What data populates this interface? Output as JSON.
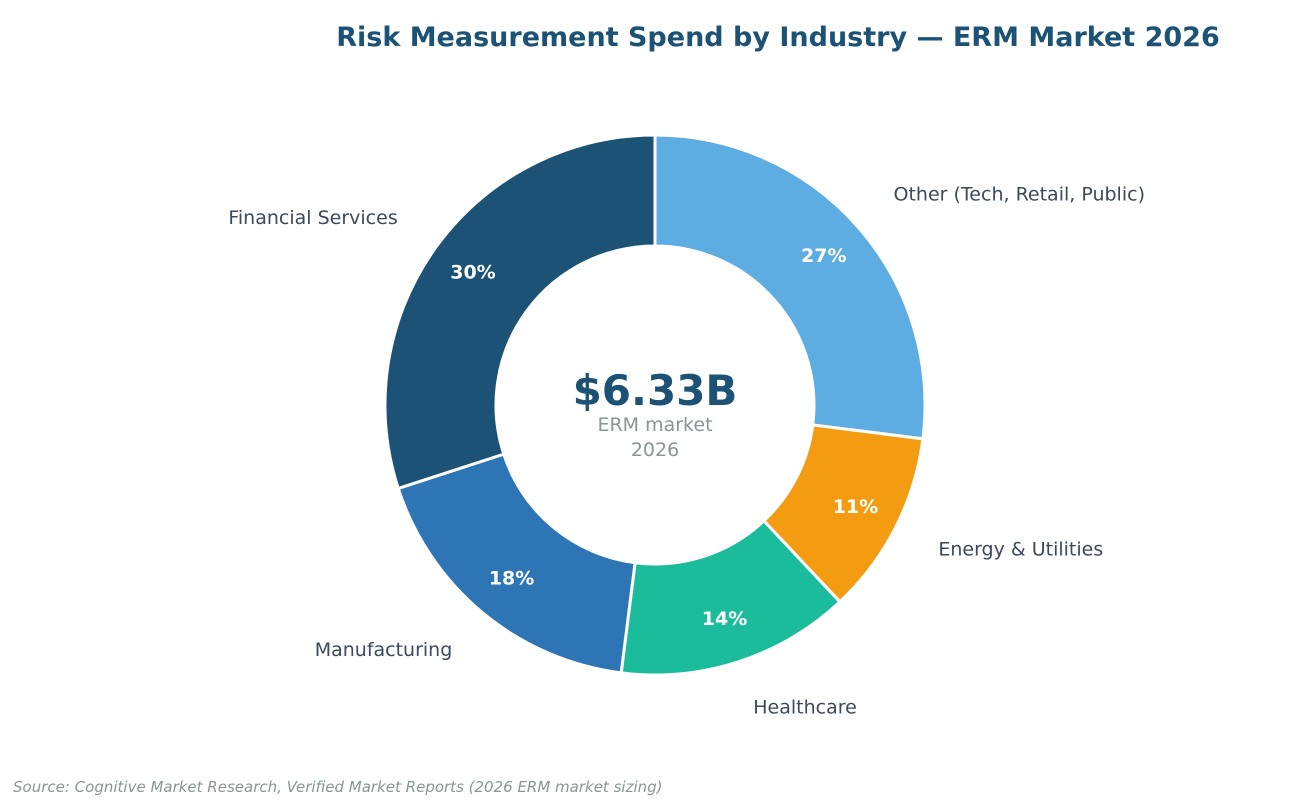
{
  "chart_data": {
    "type": "pie",
    "title": "Risk Measurement Spend by Industry — ERM Market 2026",
    "center_value": "$6.33B",
    "center_label_lines": [
      "ERM market",
      "2026"
    ],
    "categories": [
      "Other (Tech, Retail, Public)",
      "Energy & Utilities",
      "Healthcare",
      "Manufacturing",
      "Financial Services"
    ],
    "values": [
      27,
      11,
      14,
      18,
      30
    ],
    "value_labels": [
      "27%",
      "11%",
      "14%",
      "18%",
      "30%"
    ],
    "colors": [
      "#5dade2",
      "#f39c12",
      "#1abc9c",
      "#2e75b6",
      "#1b5276"
    ],
    "donut": true,
    "start_angle": "12 o'clock",
    "direction": "clockwise",
    "legend": "none",
    "source": "Source: Cognitive Market Research, Verified Market Reports (2026 ERM market sizing)"
  }
}
